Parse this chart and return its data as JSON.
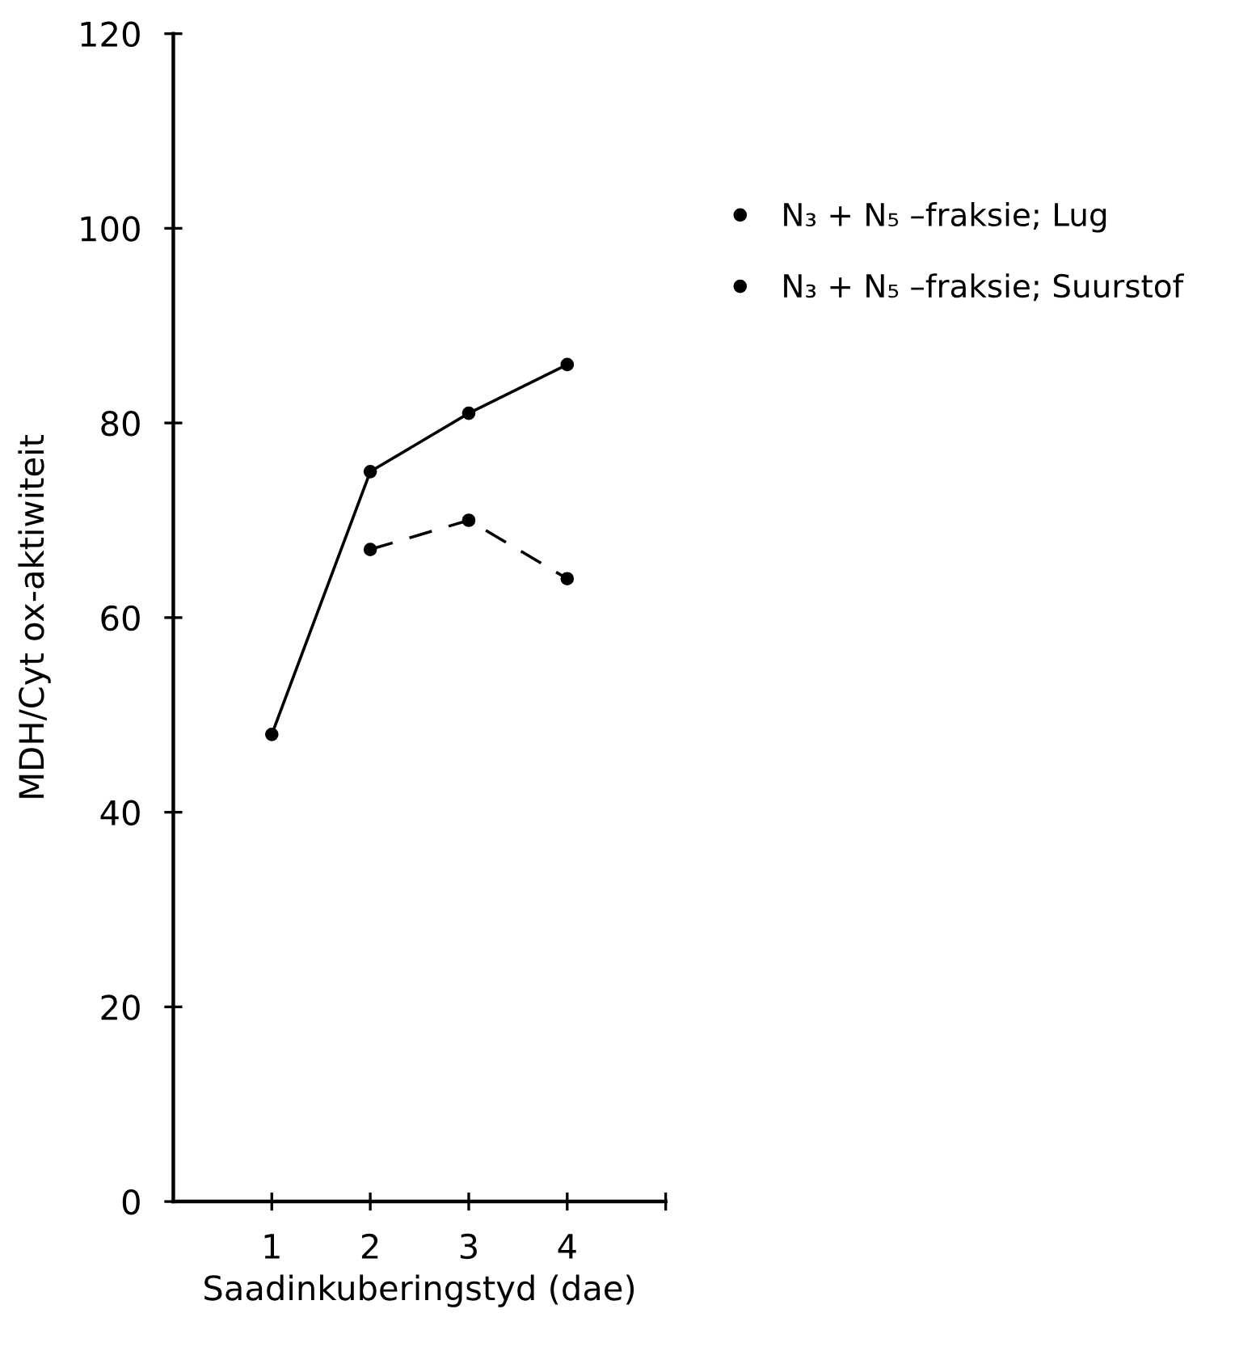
{
  "chart_data": {
    "type": "line",
    "xlabel": "Saadinkuberingstyd (dae)",
    "ylabel": "MDH/Cyt ox-aktiwiteit",
    "x": [
      1,
      2,
      3,
      4
    ],
    "series": [
      {
        "name": "N₃ + N₅ –fraksie; Lug",
        "color": "#000000",
        "line_style": "solid",
        "values": [
          48,
          75,
          81,
          86
        ]
      },
      {
        "name": "N₃ + N₅ –fraksie; Suurstof",
        "color": "#000000",
        "line_style": "dashed",
        "values": [
          null,
          67,
          70,
          64
        ]
      }
    ],
    "xlim": [
      0,
      5
    ],
    "xticks": [
      1,
      2,
      3,
      4,
      {
        "value": 5,
        "label": null
      }
    ],
    "ylim": [
      0,
      120
    ],
    "yticks": [
      0,
      20,
      40,
      60,
      80,
      100,
      120
    ],
    "marker": "circle",
    "grid": false,
    "legend": "right"
  }
}
